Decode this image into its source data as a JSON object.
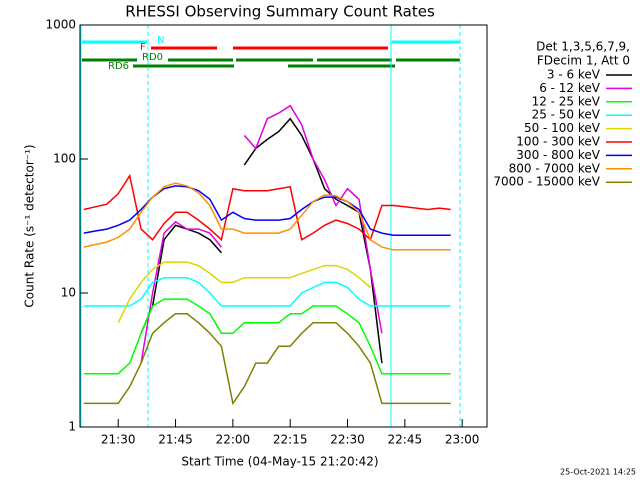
{
  "chart_data": {
    "type": "line",
    "title": "RHESSI Observing Summary Count Rates",
    "xlabel": "Start Time (04-May-15 21:20:42)",
    "ylabel": "Count Rate (s⁻¹ detector⁻¹)",
    "legend_title": [
      "Det 1,3,5,6,7,9,",
      "FDecim 1, Att 0"
    ],
    "annotations": [
      "N",
      "F",
      "RD0",
      "RD6"
    ],
    "footer": "25-Oct-2021 14:25",
    "log_y": true,
    "legend": "right",
    "xlim": [
      20,
      126.5
    ],
    "xticks": [
      {
        "value": 30,
        "label": "21:30"
      },
      {
        "value": 45,
        "label": "21:45"
      },
      {
        "value": 60,
        "label": "22:00"
      },
      {
        "value": 75,
        "label": "22:15"
      },
      {
        "value": 90,
        "label": "22:30"
      },
      {
        "value": 105,
        "label": "22:45"
      },
      {
        "value": 120,
        "label": "23:00"
      }
    ],
    "ylim": [
      1,
      1000
    ],
    "yticks": [
      1,
      10,
      100,
      1000
    ],
    "x": [
      21,
      24,
      27,
      30,
      33,
      36,
      39,
      42,
      45,
      48,
      51,
      54,
      57,
      60,
      63,
      66,
      69,
      72,
      75,
      78,
      81,
      84,
      87,
      90,
      93,
      96,
      99,
      102,
      105,
      108,
      111,
      114,
      117
    ],
    "series": [
      {
        "name": "3 - 6 keV",
        "color": "#000000",
        "values": [
          null,
          null,
          null,
          null,
          null,
          5,
          8,
          25,
          32,
          30,
          28,
          25,
          20,
          null,
          90,
          120,
          140,
          160,
          200,
          150,
          100,
          60,
          50,
          45,
          40,
          15,
          3,
          null,
          null,
          null,
          null,
          null,
          null
        ]
      },
      {
        "name": "6 - 12 keV",
        "color": "#e000e0",
        "values": [
          null,
          null,
          null,
          null,
          null,
          3,
          10,
          28,
          34,
          30,
          30,
          28,
          22,
          null,
          150,
          120,
          200,
          220,
          250,
          180,
          100,
          70,
          45,
          60,
          50,
          15,
          5,
          null,
          null,
          null,
          null,
          null,
          null
        ]
      },
      {
        "name": "12 - 25 keV",
        "color": "#00ff00",
        "values": [
          2.5,
          2.5,
          2.5,
          2.5,
          3,
          5,
          8,
          9,
          9,
          9,
          8,
          7,
          5,
          5,
          6,
          6,
          6,
          6,
          7,
          7,
          8,
          8,
          8,
          7,
          6,
          4,
          2.5,
          2.5,
          2.5,
          2.5,
          2.5,
          2.5,
          2.5
        ]
      },
      {
        "name": "25 - 50 keV",
        "color": "#00ffff",
        "values": [
          8,
          8,
          8,
          8,
          8,
          9,
          12,
          13,
          13,
          13,
          12,
          10,
          8,
          8,
          8,
          8,
          8,
          8,
          8,
          10,
          11,
          12,
          12,
          11,
          9,
          8,
          8,
          8,
          8,
          8,
          8,
          8,
          8
        ]
      },
      {
        "name": "50 - 100 keV",
        "color": "#d8d800",
        "values": [
          null,
          null,
          null,
          6,
          9,
          12,
          15,
          17,
          17,
          17,
          16,
          14,
          12,
          12,
          13,
          13,
          13,
          13,
          13,
          14,
          15,
          16,
          16,
          15,
          13,
          11,
          null,
          null,
          null,
          null,
          null,
          null,
          null
        ]
      },
      {
        "name": "100 - 300 keV",
        "color": "#ff0000",
        "values": [
          42,
          44,
          46,
          55,
          75,
          30,
          25,
          33,
          40,
          40,
          35,
          30,
          25,
          60,
          58,
          58,
          58,
          60,
          62,
          25,
          28,
          32,
          35,
          33,
          30,
          25,
          45,
          45,
          44,
          43,
          42,
          43,
          42
        ]
      },
      {
        "name": "300 - 800 keV",
        "color": "#0000ff",
        "values": [
          28,
          29,
          30,
          32,
          35,
          42,
          52,
          60,
          63,
          62,
          58,
          50,
          35,
          40,
          36,
          35,
          35,
          35,
          36,
          42,
          48,
          52,
          52,
          48,
          42,
          30,
          28,
          27,
          27,
          27,
          27,
          27,
          27
        ]
      },
      {
        "name": "800 - 7000 keV",
        "color": "#ff9000",
        "values": [
          22,
          23,
          24,
          26,
          30,
          40,
          52,
          62,
          66,
          63,
          56,
          45,
          30,
          30,
          28,
          28,
          28,
          28,
          30,
          38,
          48,
          54,
          53,
          48,
          40,
          25,
          22,
          21,
          21,
          21,
          21,
          21,
          21
        ]
      },
      {
        "name": "7000 - 15000 keV",
        "color": "#808000",
        "values": [
          1.5,
          1.5,
          1.5,
          1.5,
          2,
          3,
          5,
          6,
          7,
          7,
          6,
          5,
          4,
          1.5,
          2,
          3,
          3,
          4,
          4,
          5,
          6,
          6,
          6,
          5,
          4,
          3,
          1.5,
          1.5,
          1.5,
          1.5,
          1.5,
          1.5,
          1.5
        ]
      }
    ]
  }
}
